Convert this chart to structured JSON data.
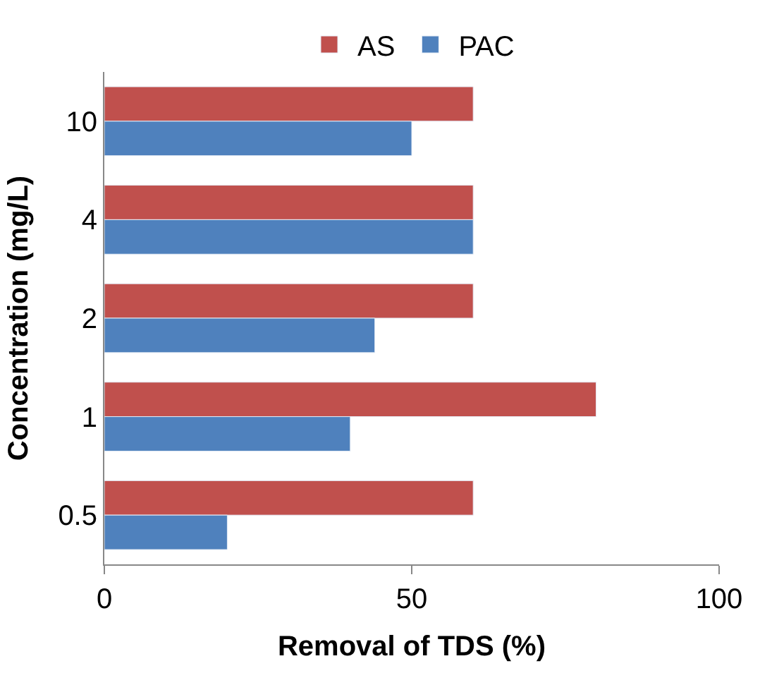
{
  "chart_data": {
    "type": "bar",
    "orientation": "horizontal",
    "xlabel": "Removal of TDS (%)",
    "ylabel": "Concentration (mg/L)",
    "categories": [
      "10",
      "4",
      "2",
      "1",
      "0.5"
    ],
    "series": [
      {
        "name": "AS",
        "color": "#c0504d",
        "values": [
          60,
          60,
          60,
          80,
          60
        ]
      },
      {
        "name": "PAC",
        "color": "#4f81bd",
        "values": [
          50,
          60,
          44,
          40,
          20
        ]
      }
    ],
    "xlim": [
      0,
      100
    ],
    "xticks": [
      0,
      50,
      100
    ],
    "legend": "top"
  }
}
